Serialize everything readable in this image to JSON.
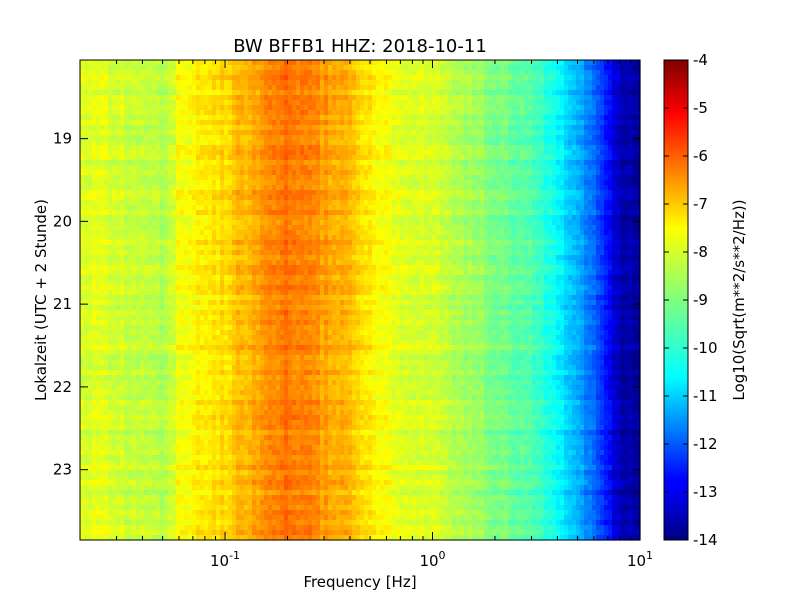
{
  "chart_data": {
    "type": "heatmap",
    "title": "BW BFFB1 HHZ: 2018-10-11",
    "xlabel": "Frequency [Hz]",
    "ylabel": "Lokalzeit (UTC + 2 Stunde)",
    "x_scale": "log",
    "xlim": [
      0.02,
      10
    ],
    "x_ticks": [
      {
        "value": 0.1,
        "base": "10",
        "exp": "-1"
      },
      {
        "value": 1,
        "base": "10",
        "exp": "0"
      },
      {
        "value": 10,
        "base": "10",
        "exp": "1"
      }
    ],
    "ylim": [
      18.05,
      23.85
    ],
    "y_ticks": [
      {
        "value": 19,
        "label": "19"
      },
      {
        "value": 20,
        "label": "20"
      },
      {
        "value": 21,
        "label": "21"
      },
      {
        "value": 22,
        "label": "22"
      },
      {
        "value": 23,
        "label": "23"
      }
    ],
    "colorbar": {
      "label": "Log10(Sqrt(m**2/s**2/Hz))",
      "min": -14,
      "max": -4,
      "ticks": [
        "-4",
        "-5",
        "-6",
        "-7",
        "-8",
        "-9",
        "-10",
        "-11",
        "-12",
        "-13",
        "-14"
      ],
      "colormap": "jet"
    },
    "profile": {
      "frequency_hz": [
        0.02,
        0.03,
        0.04,
        0.05,
        0.06,
        0.08,
        0.1,
        0.12,
        0.14,
        0.17,
        0.2,
        0.25,
        0.3,
        0.4,
        0.5,
        0.6,
        0.8,
        1,
        1.5,
        2,
        3,
        4,
        5,
        6,
        7,
        8,
        10
      ],
      "mean_log10_amplitude": [
        -8.0,
        -8.1,
        -8.4,
        -8.5,
        -7.9,
        -7.6,
        -7.4,
        -7.1,
        -6.9,
        -6.5,
        -6.4,
        -6.5,
        -6.8,
        -7.1,
        -7.6,
        -7.9,
        -8.1,
        -8.2,
        -8.6,
        -9.0,
        -9.5,
        -10.2,
        -11.0,
        -11.8,
        -12.6,
        -13.5,
        -13.7
      ]
    }
  }
}
